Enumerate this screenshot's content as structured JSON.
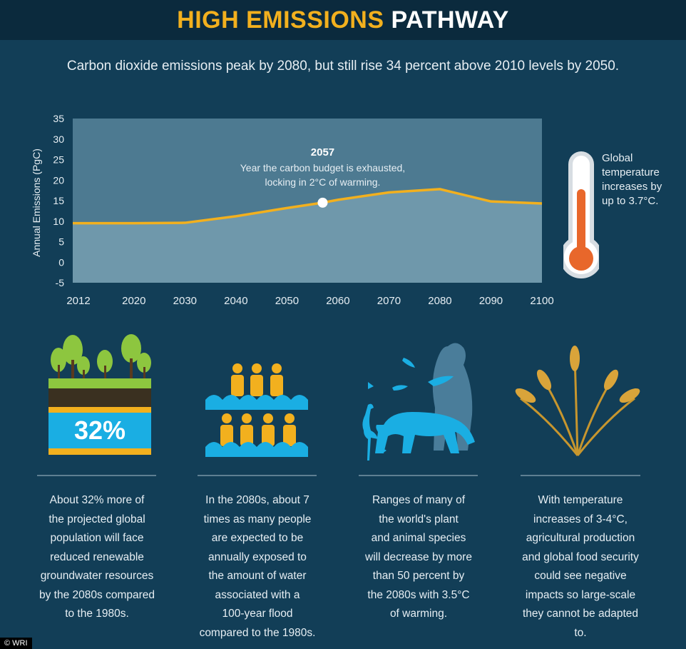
{
  "header": {
    "title_highlight": "HIGH EMISSIONS",
    "title_rest": "PATHWAY"
  },
  "subtitle": "Carbon dioxide emissions peak by 2080, but still rise 34 percent above 2010 levels by 2050.",
  "chart_data": {
    "type": "area",
    "title": "",
    "xlabel": "",
    "ylabel": "Annual Emissions (PgC)",
    "x": [
      2012,
      2020,
      2030,
      2040,
      2050,
      2057,
      2060,
      2070,
      2080,
      2090,
      2100
    ],
    "x_tick_labels": [
      "2012",
      "2020",
      "2030",
      "2040",
      "2050",
      "2060",
      "2070",
      "2080",
      "2090",
      "2100"
    ],
    "x_tick_values": [
      2012,
      2020,
      2030,
      2040,
      2050,
      2060,
      2070,
      2080,
      2090,
      2100
    ],
    "series": [
      {
        "name": "Annual Emissions",
        "values": [
          9.5,
          9.5,
          9.6,
          11.2,
          13.2,
          14.5,
          15.2,
          17.0,
          17.8,
          14.8,
          14.3
        ]
      }
    ],
    "yticks": [
      35,
      30,
      25,
      20,
      15,
      10,
      5,
      0,
      -5
    ],
    "ylim": [
      -5,
      35
    ],
    "xlim": [
      2008,
      2100
    ],
    "grid": false,
    "annotation": {
      "x": 2057,
      "y": 14.5,
      "title": "2057",
      "line1": "Year the carbon budget is exhausted,",
      "line2": "locking in 2°C of warming."
    }
  },
  "thermometer": {
    "lines": [
      "Global",
      "temperature",
      "increases by",
      "up to 3.7°C."
    ]
  },
  "panels": [
    {
      "badge": "32%",
      "lines": [
        "About 32% more of",
        "the projected global",
        "population will face",
        "reduced renewable",
        "groundwater resources",
        "by the 2080s compared",
        "to the 1980s."
      ]
    },
    {
      "lines": [
        "In the 2080s, about 7",
        "times as many people",
        "are expected to be",
        "annually exposed to",
        "the amount of water",
        "associated with a",
        "100-year flood",
        "compared to the 1980s."
      ]
    },
    {
      "lines": [
        "Ranges of many of",
        "the world's plant",
        "and animal species",
        "will decrease by more",
        "than 50 percent by",
        "the 2080s with 3.5°C",
        "of warming."
      ]
    },
    {
      "lines": [
        "With temperature",
        "increases of 3-4°C,",
        "agricultural production",
        "and global food security",
        "could see negative",
        "impacts so large-scale",
        "they cannot be adapted",
        "to."
      ]
    }
  ],
  "credit": "© WRI",
  "colors": {
    "background": "#123e57",
    "header": "#0b2a3d",
    "accent": "#f2b01e",
    "plot_area": "#4d7a91",
    "plot_fill": "#6f98ab",
    "line": "#f2b01e",
    "thermo_mercury": "#e8672b",
    "water": "#1aaee3",
    "tree_green": "#8dc63f"
  }
}
